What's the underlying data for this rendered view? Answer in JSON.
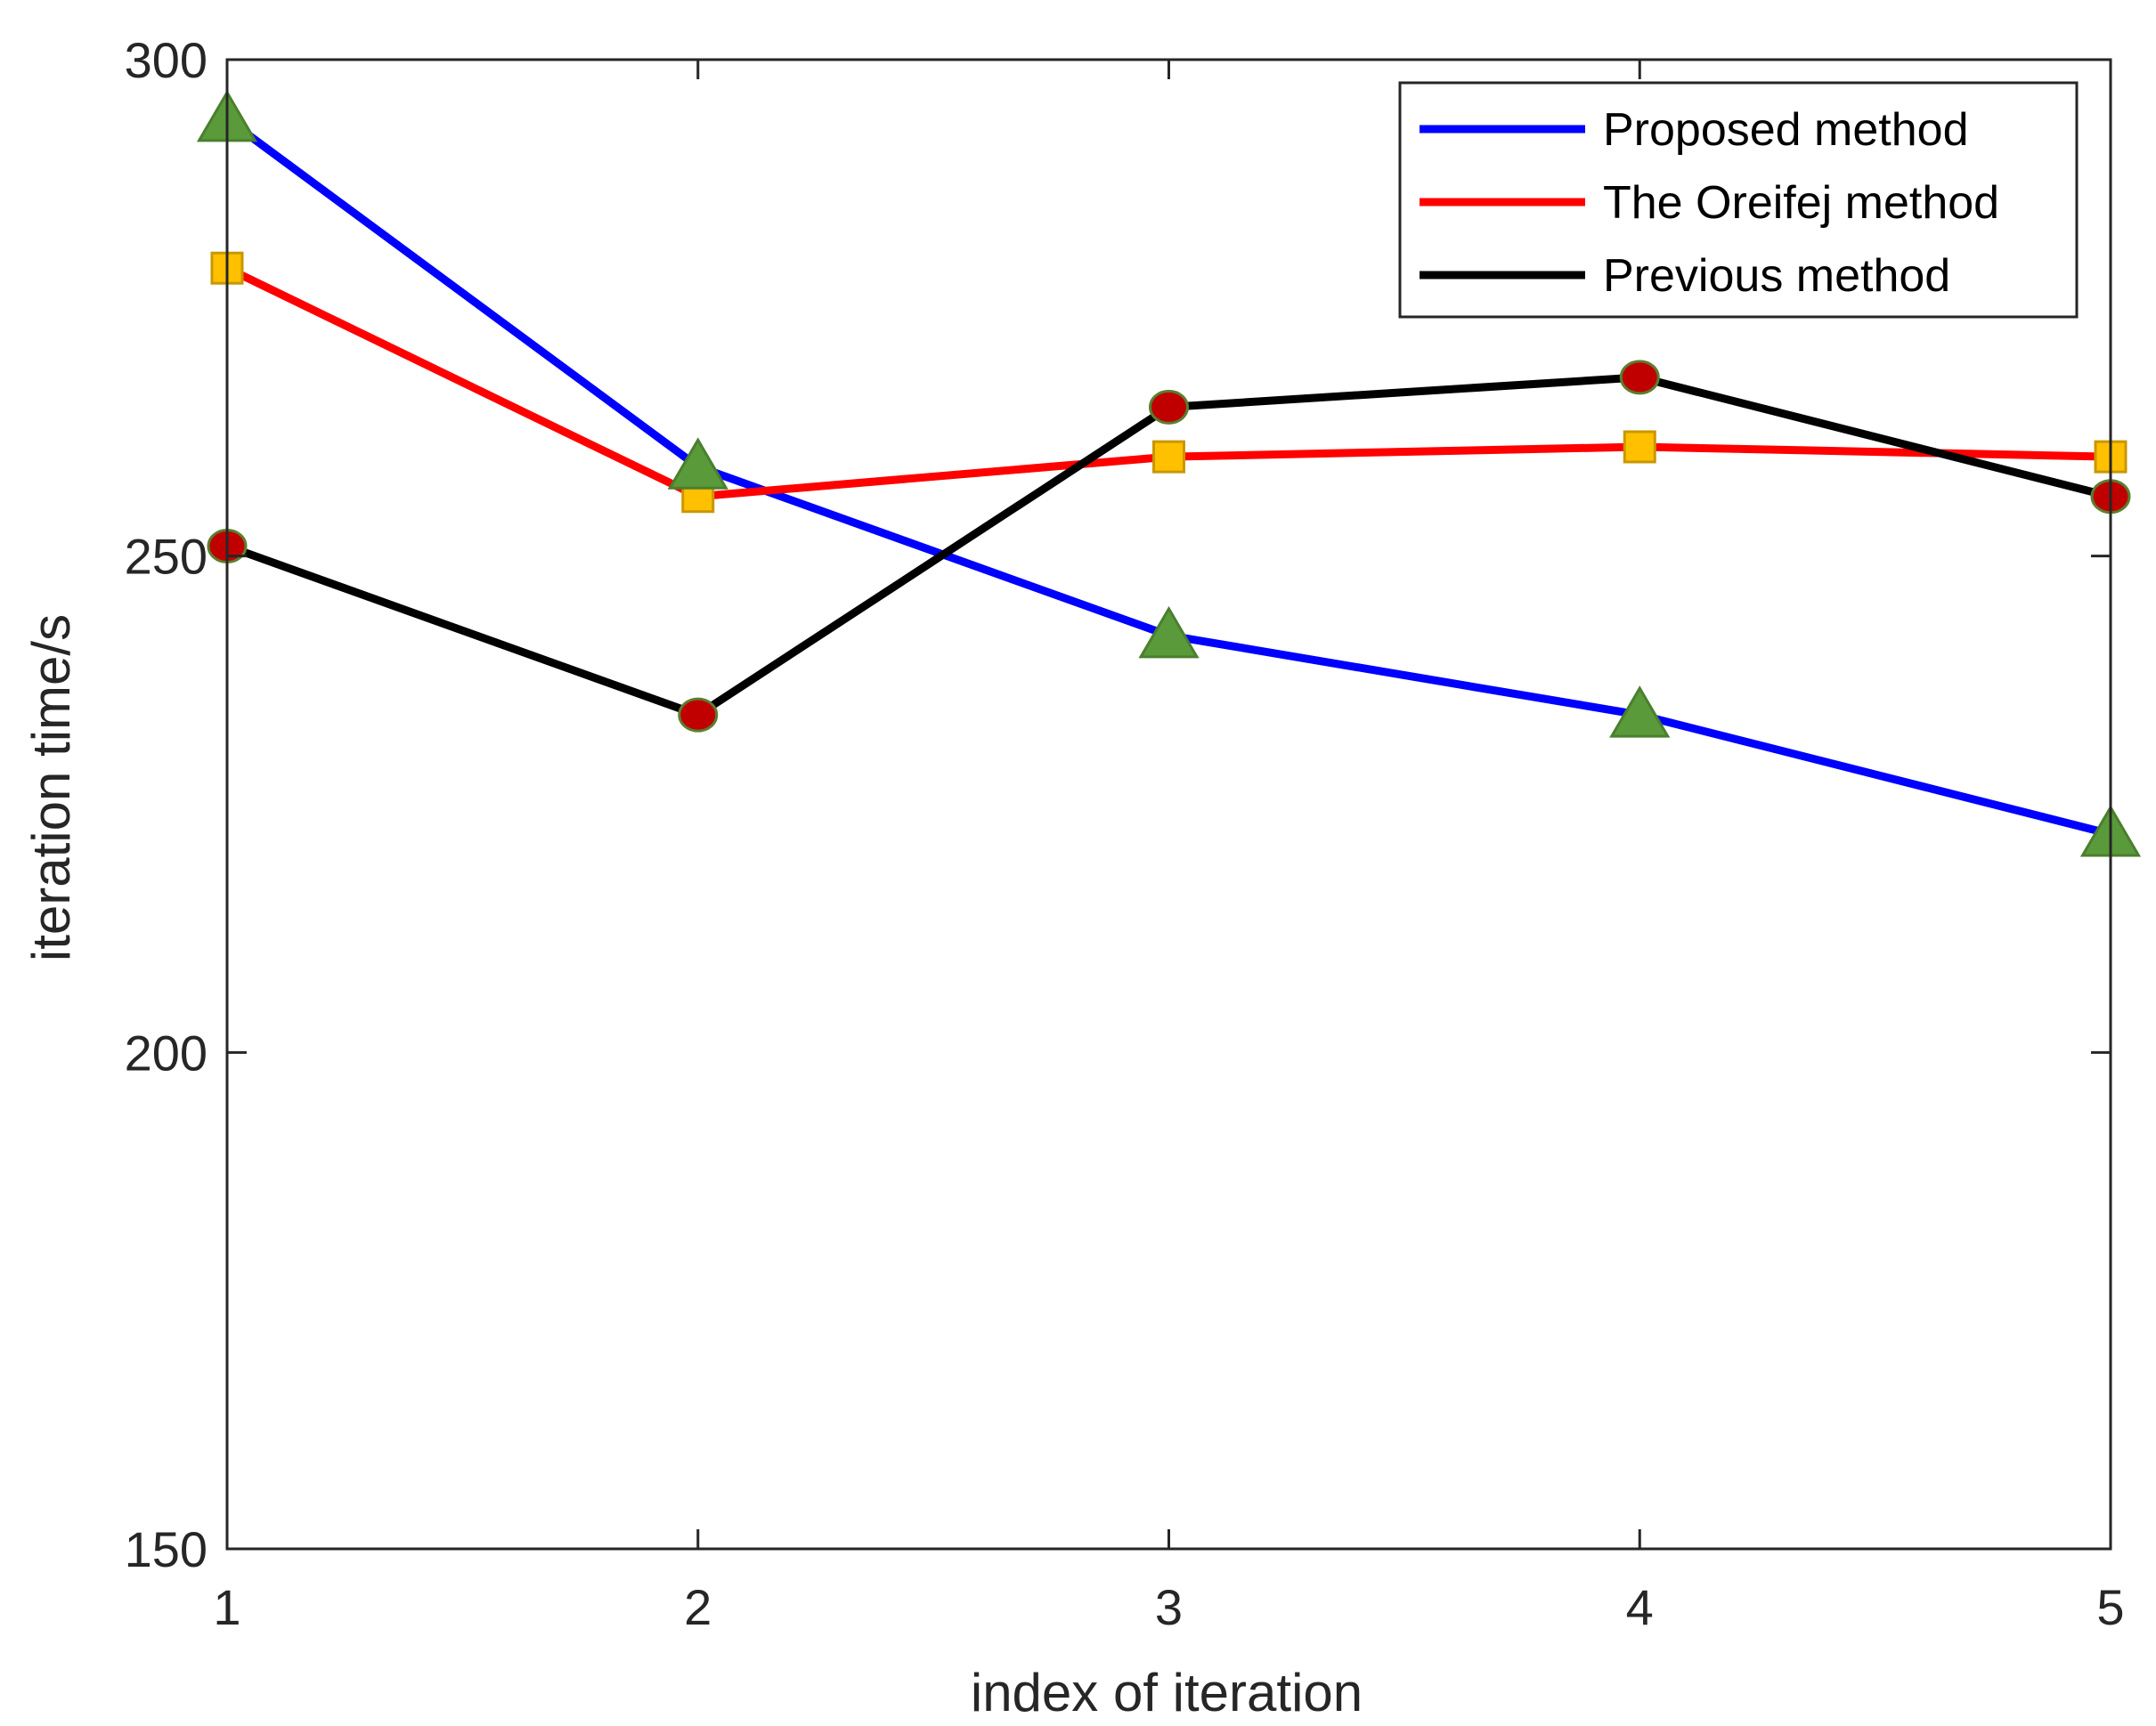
{
  "chart_data": {
    "type": "line",
    "title": "",
    "xlabel": "index of iteration",
    "ylabel": "iteration time/s",
    "xlim": [
      1,
      5
    ],
    "ylim": [
      150,
      300
    ],
    "x": [
      1,
      2,
      3,
      4,
      5
    ],
    "xticks": [
      1,
      2,
      3,
      4,
      5
    ],
    "yticks": [
      150,
      200,
      250,
      300
    ],
    "grid": false,
    "legend_position": "top-right",
    "series": [
      {
        "name": "Proposed method",
        "values": [
          294,
          259,
          242,
          234,
          222
        ],
        "color": "#0000ff",
        "marker": "triangle",
        "marker_fill": "#5a9a3a",
        "marker_edge": "#4a7f2e"
      },
      {
        "name": "The Oreifej method",
        "values": [
          279,
          256,
          260,
          261,
          260
        ],
        "color": "#ff0000",
        "marker": "square",
        "marker_fill": "#ffc000",
        "marker_edge": "#c99700"
      },
      {
        "name": "Previous method",
        "values": [
          251,
          234,
          265,
          268,
          256
        ],
        "color": "#000000",
        "marker": "circle",
        "marker_fill": "#c00000",
        "marker_edge": "#5a7f2e"
      }
    ]
  }
}
